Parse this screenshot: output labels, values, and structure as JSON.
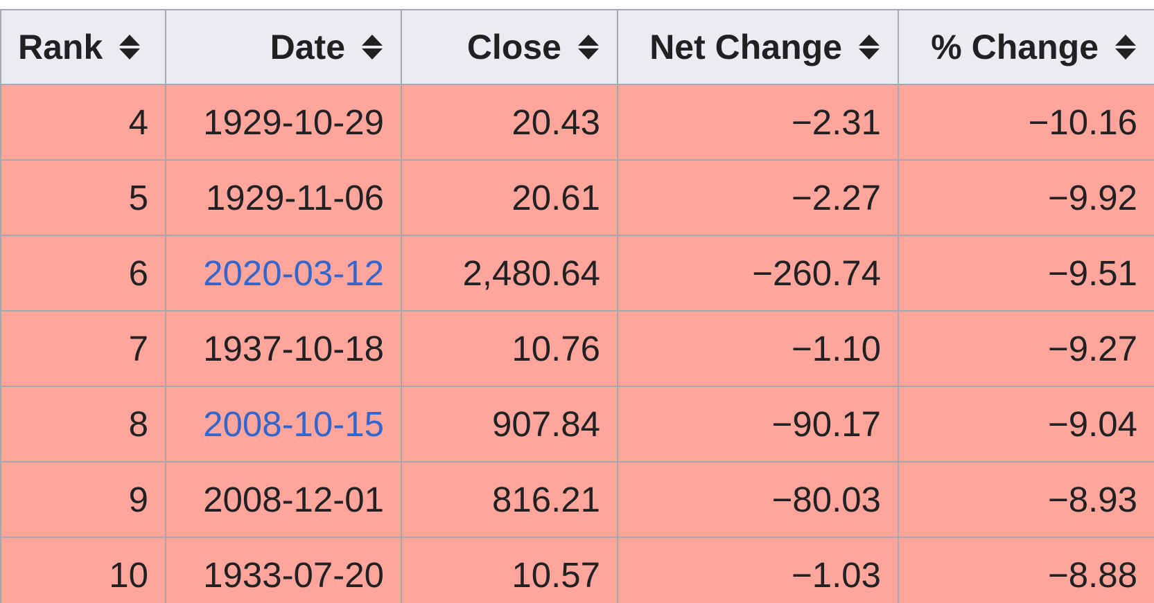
{
  "table": {
    "headers": [
      "Rank",
      "Date",
      "Close",
      "Net Change",
      "% Change"
    ],
    "rows": [
      {
        "rank": "4",
        "date": "1929-10-29",
        "date_is_link": false,
        "close": "20.43",
        "net_change": "−2.31",
        "pct_change": "−10.16"
      },
      {
        "rank": "5",
        "date": "1929-11-06",
        "date_is_link": false,
        "close": "20.61",
        "net_change": "−2.27",
        "pct_change": "−9.92"
      },
      {
        "rank": "6",
        "date": "2020-03-12",
        "date_is_link": true,
        "close": "2,480.64",
        "net_change": "−260.74",
        "pct_change": "−9.51"
      },
      {
        "rank": "7",
        "date": "1937-10-18",
        "date_is_link": false,
        "close": "10.76",
        "net_change": "−1.10",
        "pct_change": "−9.27"
      },
      {
        "rank": "8",
        "date": "2008-10-15",
        "date_is_link": true,
        "close": "907.84",
        "net_change": "−90.17",
        "pct_change": "−9.04"
      },
      {
        "rank": "9",
        "date": "2008-12-01",
        "date_is_link": false,
        "close": "816.21",
        "net_change": "−80.03",
        "pct_change": "−8.93"
      },
      {
        "rank": "10",
        "date": "1933-07-20",
        "date_is_link": false,
        "close": "10.57",
        "net_change": "−1.03",
        "pct_change": "−8.88"
      }
    ]
  },
  "colors": {
    "header_bg": "#eaecf0",
    "row_bg": "#ffa59b",
    "border": "#a2a9b1",
    "link": "#3366cc",
    "text": "#202122"
  },
  "icons": {
    "sort": "sort-icon"
  }
}
